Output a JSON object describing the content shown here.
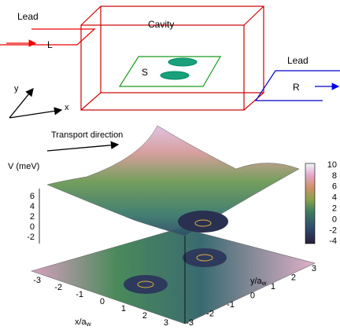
{
  "schematic": {
    "cavity": "Cavity",
    "sample": "S",
    "lead_left": {
      "title": "Lead",
      "label": "L"
    },
    "lead_right": {
      "title": "Lead",
      "label": "R"
    },
    "axes": {
      "x": "x",
      "y": "y"
    }
  },
  "plot": {
    "transport": "Transport direction",
    "zlabel": "V (meV)",
    "zticks": [
      6,
      4,
      2,
      0,
      -2
    ],
    "colorbar_ticks": [
      10,
      8,
      6,
      4,
      2,
      0,
      -2,
      -4
    ],
    "xticks": [
      -3,
      -2,
      -1,
      0,
      1,
      2,
      3
    ],
    "yticks": [
      3,
      2,
      1,
      0,
      -1,
      -2,
      -3
    ],
    "xlabel": {
      "text": "x/a",
      "sub": "w"
    },
    "ylabel": {
      "text": "y/a",
      "sub": "w"
    }
  }
}
